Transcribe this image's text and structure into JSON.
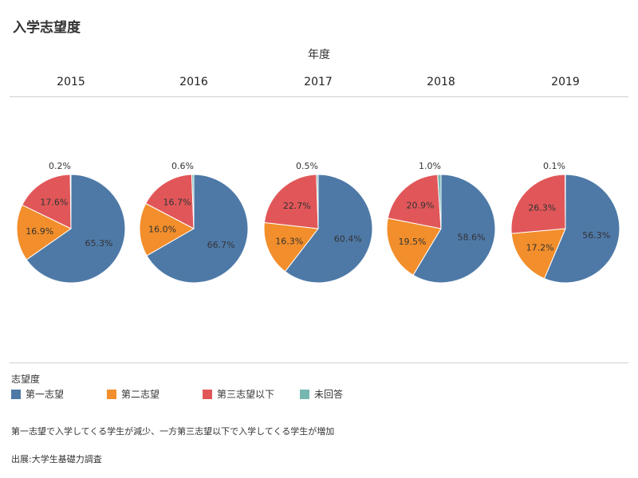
{
  "title": "入学志望度",
  "header_label": "年度",
  "legend_title": "志望度",
  "note": "第一志望で入学してくる学生が減少、一方第三志望以下で入学してくる学生が増加",
  "source": "出展:大学生基礎力調査",
  "colors": {
    "first": "#4e79a7",
    "second": "#f28e2b",
    "third": "#e15759",
    "none": "#76b7b2"
  },
  "chart_data": {
    "type": "pie",
    "categories": [
      "第一志望",
      "第二志望",
      "第三志望以下",
      "未回答"
    ],
    "series": [
      {
        "name": "2015",
        "values": [
          65.3,
          16.9,
          17.6,
          0.2
        ]
      },
      {
        "name": "2016",
        "values": [
          66.7,
          16.0,
          16.7,
          0.6
        ]
      },
      {
        "name": "2017",
        "values": [
          60.4,
          16.3,
          22.7,
          0.5
        ]
      },
      {
        "name": "2018",
        "values": [
          58.6,
          19.5,
          20.9,
          1.0
        ]
      },
      {
        "name": "2019",
        "values": [
          56.3,
          17.2,
          26.3,
          0.1
        ]
      }
    ],
    "value_labels": [
      [
        "65.3%",
        "16.9%",
        "17.6%",
        "0.2%"
      ],
      [
        "66.7%",
        "16.0%",
        "16.7%",
        "0.6%"
      ],
      [
        "60.4%",
        "16.3%",
        "22.7%",
        "0.5%"
      ],
      [
        "58.6%",
        "19.5%",
        "20.9%",
        "1.0%"
      ],
      [
        "56.3%",
        "17.2%",
        "26.3%",
        "0.1%"
      ]
    ],
    "legend_position": "bottom-left"
  }
}
